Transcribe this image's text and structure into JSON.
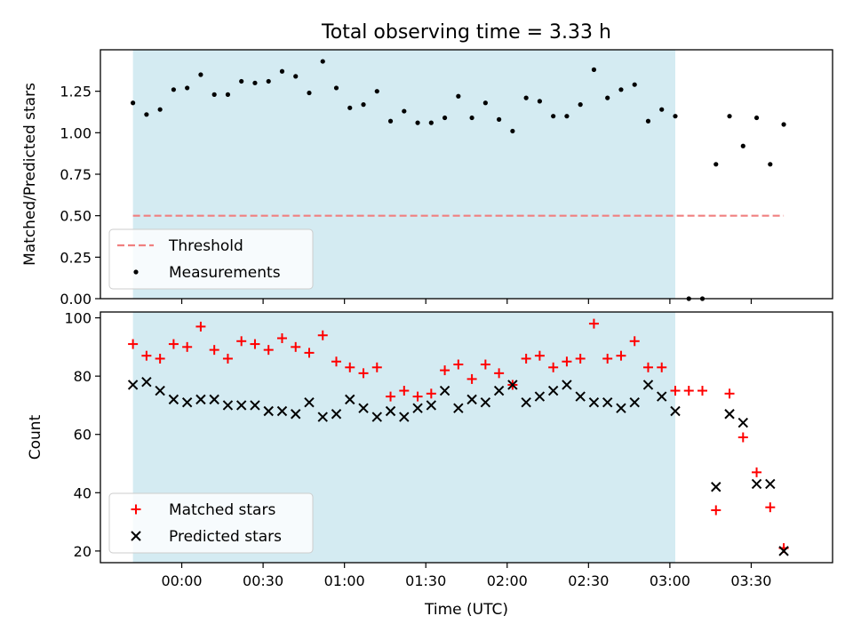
{
  "chart_data": [
    {
      "type": "scatter",
      "title": "Total observing time = 3.33 h",
      "xlabel": "",
      "ylabel": "Matched/Predicted stars",
      "xlim": [
        "23:30",
        "04:00"
      ],
      "ylim": [
        0,
        1.5
      ],
      "yticks": [
        "0.00",
        "0.25",
        "0.50",
        "0.75",
        "1.00",
        "1.25"
      ],
      "shaded_interval": [
        "23:42",
        "03:02"
      ],
      "shaded_color": "#add8e6",
      "legend_position": "lower-left",
      "series": [
        {
          "name": "Threshold",
          "style": "dashed-line",
          "color": "#f08080",
          "x": [
            "23:42",
            "03:42"
          ],
          "y": [
            0.5,
            0.5
          ]
        },
        {
          "name": "Measurements",
          "style": "dot",
          "color": "#000000",
          "x": [
            "23:42",
            "23:47",
            "23:52",
            "23:57",
            "00:02",
            "00:07",
            "00:12",
            "00:17",
            "00:22",
            "00:27",
            "00:32",
            "00:37",
            "00:42",
            "00:47",
            "00:52",
            "00:57",
            "01:02",
            "01:07",
            "01:12",
            "01:17",
            "01:22",
            "01:27",
            "01:32",
            "01:37",
            "01:42",
            "01:47",
            "01:52",
            "01:57",
            "02:02",
            "02:07",
            "02:12",
            "02:17",
            "02:22",
            "02:27",
            "02:32",
            "02:37",
            "02:42",
            "02:47",
            "02:52",
            "02:57",
            "03:02",
            "03:07",
            "03:12",
            "03:17",
            "03:22",
            "03:27",
            "03:32",
            "03:37",
            "03:42"
          ],
          "y": [
            1.18,
            1.11,
            1.14,
            1.26,
            1.27,
            1.35,
            1.23,
            1.23,
            1.31,
            1.3,
            1.31,
            1.37,
            1.34,
            1.24,
            1.43,
            1.27,
            1.15,
            1.17,
            1.25,
            1.07,
            1.13,
            1.06,
            1.06,
            1.09,
            1.22,
            1.09,
            1.18,
            1.08,
            1.01,
            1.21,
            1.19,
            1.1,
            1.1,
            1.17,
            1.38,
            1.21,
            1.26,
            1.29,
            1.07,
            1.14,
            1.1,
            0.0,
            0.0,
            0.81,
            1.1,
            0.92,
            1.09,
            0.81,
            1.05
          ]
        }
      ]
    },
    {
      "type": "scatter",
      "title": "",
      "xlabel": "Time (UTC)",
      "ylabel": "Count",
      "xlim": [
        "23:30",
        "04:00"
      ],
      "ylim": [
        16,
        102
      ],
      "yticks": [
        "20",
        "40",
        "60",
        "80",
        "100"
      ],
      "xticks": [
        "00:00",
        "00:30",
        "01:00",
        "01:30",
        "02:00",
        "02:30",
        "03:00",
        "03:30"
      ],
      "shaded_interval": [
        "23:42",
        "03:02"
      ],
      "shaded_color": "#add8e6",
      "legend_position": "lower-left",
      "series": [
        {
          "name": "Matched stars",
          "marker": "plus",
          "color": "#ff0000",
          "x": [
            "23:42",
            "23:47",
            "23:52",
            "23:57",
            "00:02",
            "00:07",
            "00:12",
            "00:17",
            "00:22",
            "00:27",
            "00:32",
            "00:37",
            "00:42",
            "00:47",
            "00:52",
            "00:57",
            "01:02",
            "01:07",
            "01:12",
            "01:17",
            "01:22",
            "01:27",
            "01:32",
            "01:37",
            "01:42",
            "01:47",
            "01:52",
            "01:57",
            "02:02",
            "02:07",
            "02:12",
            "02:17",
            "02:22",
            "02:27",
            "02:32",
            "02:37",
            "02:42",
            "02:47",
            "02:52",
            "02:57",
            "03:02",
            "03:07",
            "03:12",
            "03:17",
            "03:22",
            "03:27",
            "03:32",
            "03:37",
            "03:42"
          ],
          "y": [
            91,
            87,
            86,
            91,
            90,
            97,
            89,
            86,
            92,
            91,
            89,
            93,
            90,
            88,
            94,
            85,
            83,
            81,
            83,
            73,
            75,
            73,
            74,
            82,
            84,
            79,
            84,
            81,
            77,
            86,
            87,
            83,
            85,
            86,
            98,
            86,
            87,
            92,
            83,
            83,
            75,
            75,
            75,
            34,
            74,
            59,
            47,
            35,
            21
          ]
        },
        {
          "name": "Predicted stars",
          "marker": "x",
          "color": "#000000",
          "x": [
            "23:42",
            "23:47",
            "23:52",
            "23:57",
            "00:02",
            "00:07",
            "00:12",
            "00:17",
            "00:22",
            "00:27",
            "00:32",
            "00:37",
            "00:42",
            "00:47",
            "00:52",
            "00:57",
            "01:02",
            "01:07",
            "01:12",
            "01:17",
            "01:22",
            "01:27",
            "01:32",
            "01:37",
            "01:42",
            "01:47",
            "01:52",
            "01:57",
            "02:02",
            "02:07",
            "02:12",
            "02:17",
            "02:22",
            "02:27",
            "02:32",
            "02:37",
            "02:42",
            "02:47",
            "02:52",
            "02:57",
            "03:02",
            "03:17",
            "03:22",
            "03:27",
            "03:32",
            "03:37",
            "03:42"
          ],
          "y": [
            77,
            78,
            75,
            72,
            71,
            72,
            72,
            70,
            70,
            70,
            68,
            68,
            67,
            71,
            66,
            67,
            72,
            69,
            66,
            68,
            66,
            69,
            70,
            75,
            69,
            72,
            71,
            75,
            77,
            71,
            73,
            75,
            77,
            73,
            71,
            71,
            69,
            71,
            77,
            73,
            68,
            42,
            67,
            64,
            43,
            43,
            20
          ]
        }
      ]
    }
  ]
}
